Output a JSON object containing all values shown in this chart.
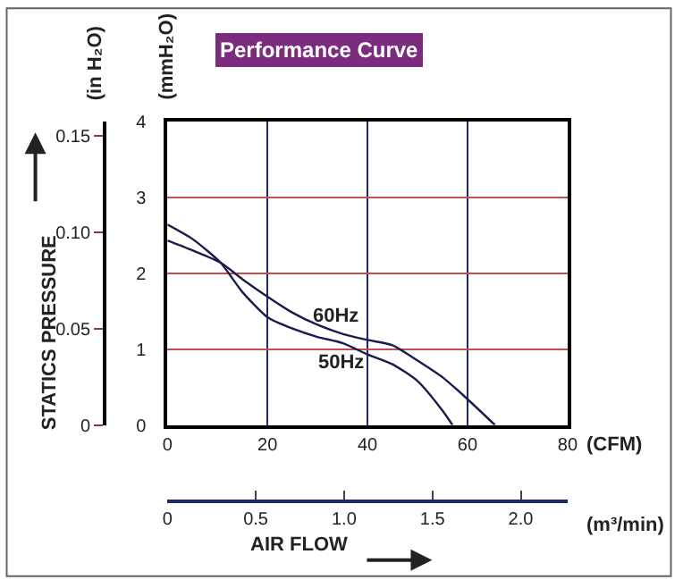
{
  "chart_data": {
    "type": "line",
    "title": "Performance Curve",
    "xlabel": "(CFM)",
    "ylabel": "(mmH₂O)",
    "y2label": "(in H₂O)",
    "x2label": "(m³/min)",
    "xlim": [
      0,
      80
    ],
    "xticks": [
      0,
      20,
      40,
      60,
      80
    ],
    "ylim": [
      0,
      4
    ],
    "yticks": [
      0,
      1,
      2,
      3,
      4
    ],
    "y2lim": [
      0,
      0.1575
    ],
    "y2ticks": [
      0,
      {
        "value": 0.05,
        "label": "0.05"
      },
      {
        "value": 0.1,
        "label": "0.10"
      },
      0.15
    ],
    "x2lim": [
      0,
      2.265
    ],
    "x2ticks": [
      0,
      0.5,
      {
        "value": 1,
        "label": "1.0"
      },
      1.5,
      {
        "value": 2,
        "label": "2.0"
      }
    ],
    "grid": true,
    "marker": "none",
    "line_style": "solid",
    "series": [
      {
        "color": "#1c1c4c",
        "x": [
          0,
          5,
          10.6,
          15,
          20,
          25,
          30,
          35,
          40,
          45,
          50,
          55,
          57
        ],
        "values": [
          2.64,
          2.45,
          2.14,
          1.75,
          1.42,
          1.27,
          1.16,
          1.08,
          0.93,
          0.8,
          0.58,
          0.19,
          0
        ]
      },
      {
        "color": "#1c1c4c",
        "x": [
          0,
          5,
          10.6,
          15,
          20,
          25,
          30,
          35,
          40,
          45,
          50,
          55,
          60,
          65.5
        ],
        "values": [
          2.43,
          2.3,
          2.14,
          1.92,
          1.69,
          1.48,
          1.32,
          1.2,
          1.12,
          1.05,
          0.85,
          0.63,
          0.34,
          0
        ]
      }
    ],
    "annotations": [
      "60Hz",
      "50Hz",
      "STATICS PRESSURE",
      "AIR FLOW"
    ]
  }
}
